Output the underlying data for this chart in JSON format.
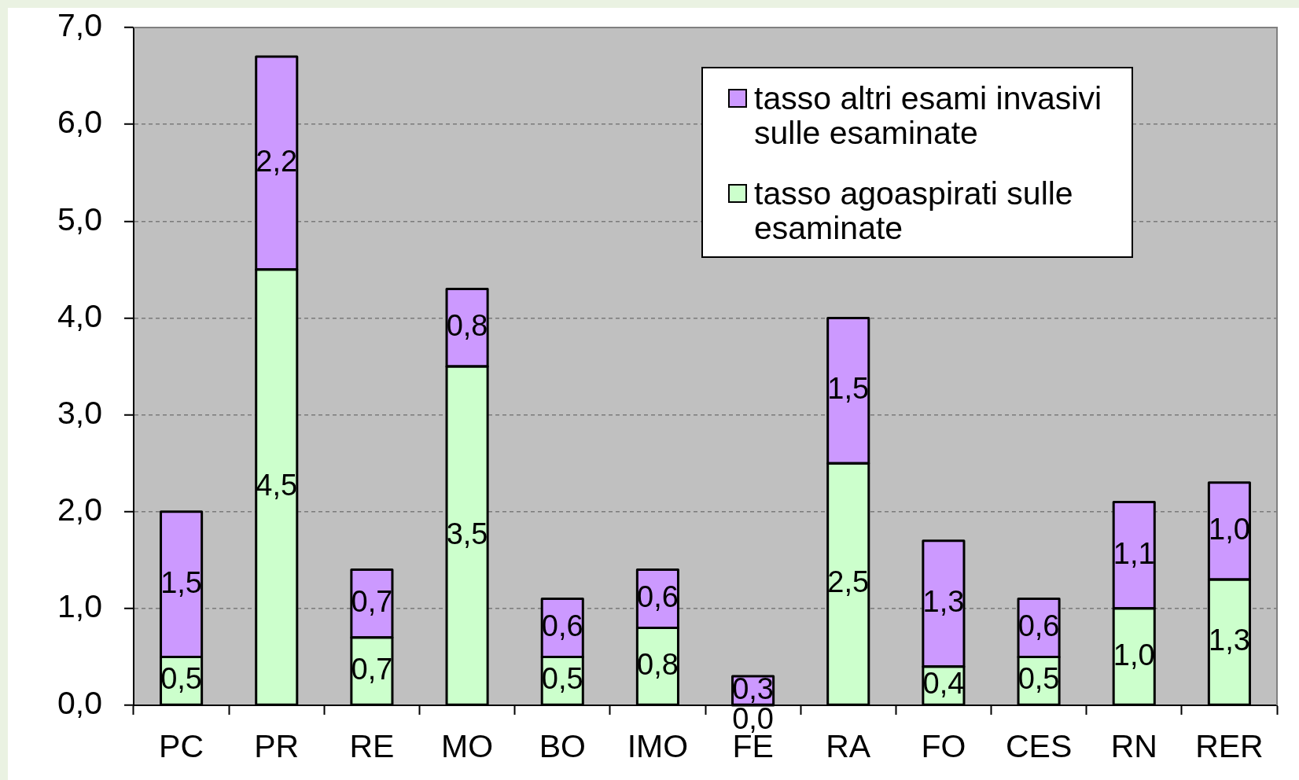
{
  "chart_data": {
    "type": "bar",
    "stacked": true,
    "categories": [
      "PC",
      "PR",
      "RE",
      "MO",
      "BO",
      "IMO",
      "FE",
      "RA",
      "FO",
      "CES",
      "RN",
      "RER"
    ],
    "series": [
      {
        "name": "tasso agoaspirati sulle esaminate",
        "color": "#ccffcc",
        "values": [
          0.5,
          4.5,
          0.7,
          3.5,
          0.5,
          0.8,
          0.0,
          2.5,
          0.4,
          0.5,
          1.0,
          1.3
        ],
        "value_labels": [
          "0,5",
          "4,5",
          "0,7",
          "3,5",
          "0,5",
          "0,8",
          "0,0",
          "2,5",
          "0,4",
          "0,5",
          "1,0",
          "1,3"
        ]
      },
      {
        "name": "tasso altri esami invasivi sulle esaminate",
        "color": "#cc99ff",
        "values": [
          1.5,
          2.2,
          0.7,
          0.8,
          0.6,
          0.6,
          0.3,
          1.5,
          1.3,
          0.6,
          1.1,
          1.0
        ],
        "value_labels": [
          "1,5",
          "2,2",
          "0,7",
          "0,8",
          "0,6",
          "0,6",
          "0,3",
          "1,5",
          "1,3",
          "0,6",
          "1,1",
          "1,0"
        ]
      }
    ],
    "ylim": [
      0,
      7
    ],
    "yticks": [
      {
        "value": 0,
        "label": "0,0"
      },
      {
        "value": 1,
        "label": "1,0"
      },
      {
        "value": 2,
        "label": "2,0"
      },
      {
        "value": 3,
        "label": "3,0"
      },
      {
        "value": 4,
        "label": "4,0"
      },
      {
        "value": 5,
        "label": "5,0"
      },
      {
        "value": 6,
        "label": "6,0"
      },
      {
        "value": 7,
        "label": "7,0"
      }
    ],
    "grid": "y",
    "legend": "top right"
  }
}
